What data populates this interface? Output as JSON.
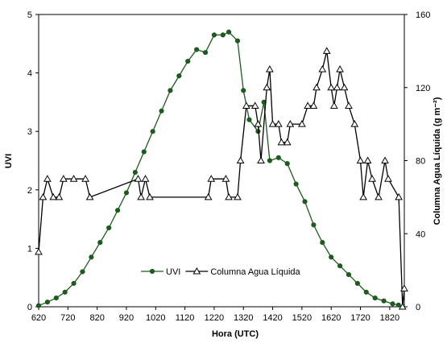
{
  "chart_data": {
    "type": "line",
    "xlabel": "Hora (UTC)",
    "ylabel": "UVI",
    "y2label": "Columna Agua Líquida (g m⁻²)",
    "xlim": [
      620,
      1870
    ],
    "xticks": [
      620,
      720,
      820,
      920,
      1020,
      1120,
      1220,
      1320,
      1420,
      1520,
      1620,
      1720,
      1820
    ],
    "ylim": [
      0,
      5
    ],
    "yticks": [
      0,
      1,
      2,
      3,
      4,
      5
    ],
    "y2lim": [
      0,
      160
    ],
    "y2ticks": [
      0,
      40,
      80,
      120,
      160
    ],
    "legend": "bottom",
    "series": [
      {
        "name": "UVI",
        "color": "#1e5b1e",
        "marker": "circle",
        "x": [
          620,
          650,
          680,
          710,
          740,
          770,
          800,
          830,
          860,
          890,
          920,
          950,
          980,
          1010,
          1040,
          1070,
          1100,
          1130,
          1160,
          1190,
          1220,
          1250,
          1270,
          1300,
          1320,
          1340,
          1370,
          1390,
          1410,
          1440,
          1470,
          1500,
          1530,
          1560,
          1590,
          1620,
          1650,
          1680,
          1710,
          1740,
          1770,
          1800,
          1830,
          1850
        ],
        "values": [
          0.02,
          0.08,
          0.15,
          0.25,
          0.4,
          0.6,
          0.85,
          1.1,
          1.35,
          1.65,
          1.95,
          2.3,
          2.65,
          3.0,
          3.35,
          3.7,
          3.95,
          4.2,
          4.4,
          4.35,
          4.65,
          4.65,
          4.7,
          4.55,
          3.7,
          3.2,
          3.0,
          3.5,
          2.5,
          2.55,
          2.45,
          2.1,
          1.8,
          1.4,
          1.1,
          0.85,
          0.7,
          0.55,
          0.4,
          0.25,
          0.15,
          0.1,
          0.05,
          0.03
        ]
      },
      {
        "name": "Columna Agua Líquida",
        "color": "#000000",
        "marker": "triangle",
        "axis": "y2",
        "x": [
          620,
          635,
          650,
          670,
          690,
          705,
          740,
          780,
          795,
          960,
          970,
          985,
          1000,
          1200,
          1210,
          1260,
          1270,
          1300,
          1310,
          1330,
          1360,
          1370,
          1380,
          1400,
          1410,
          1420,
          1440,
          1450,
          1470,
          1480,
          1520,
          1540,
          1560,
          1570,
          1590,
          1605,
          1620,
          1630,
          1640,
          1650,
          1665,
          1680,
          1700,
          1720,
          1730,
          1745,
          1760,
          1782,
          1804,
          1815,
          1851,
          1864,
          1870
        ],
        "values": [
          30,
          60,
          70,
          60,
          60,
          70,
          70,
          70,
          60,
          70,
          60,
          70,
          60,
          60,
          70,
          70,
          60,
          60,
          80,
          110,
          110,
          100,
          80,
          120,
          130,
          100,
          100,
          90,
          90,
          100,
          100,
          110,
          110,
          120,
          130,
          140,
          120,
          110,
          120,
          130,
          120,
          110,
          100,
          80,
          60,
          80,
          70,
          60,
          80,
          70,
          60,
          0,
          10
        ]
      }
    ]
  }
}
